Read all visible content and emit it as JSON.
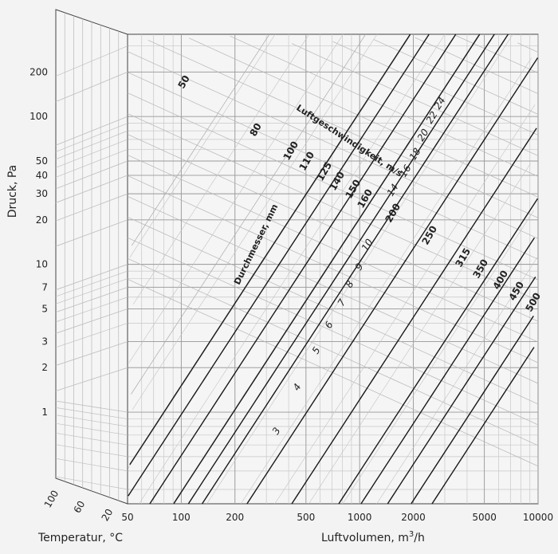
{
  "chart_data": {
    "type": "line",
    "title": "",
    "xlabel_main": "Luftvolumen, m",
    "xlabel_sup": "3",
    "xlabel_end": "/h",
    "ylabel": "Druck, Pa",
    "temperature_label": "Temperatur, °C",
    "x_scale": "log",
    "y_scale": "log",
    "xlim": [
      50,
      10000
    ],
    "ylim": [
      0.24,
      360
    ],
    "x_ticks": [
      "50",
      "100",
      "200",
      "500",
      "1000",
      "2000",
      "5000",
      "10000"
    ],
    "x_tick_values": [
      50,
      100,
      200,
      500,
      1000,
      2000,
      5000,
      10000
    ],
    "y_ticks": [
      "200",
      "100",
      "50",
      "40",
      "30",
      "20",
      "10",
      "7",
      "5",
      "3",
      "2",
      "1"
    ],
    "y_tick_values": [
      200,
      100,
      50,
      40,
      30,
      20,
      10,
      7,
      5,
      3,
      2,
      1
    ],
    "temperature_ticks": [
      "100",
      "60",
      "20"
    ],
    "temperature_tick_values": [
      100,
      60,
      20
    ],
    "diameter_title": "Durchmesser, mm",
    "velocity_title": "Luftgeschwindigkeit, m/s",
    "diameters_mm": [
      {
        "label": "50",
        "q_at_1pa": 13
      },
      {
        "label": "80",
        "q_at_1pa": 45
      },
      {
        "label": "100",
        "q_at_1pa": 80
      },
      {
        "label": "110",
        "q_at_1pa": 102
      },
      {
        "label": "125",
        "q_at_1pa": 144
      },
      {
        "label": "140",
        "q_at_1pa": 196
      },
      {
        "label": "150",
        "q_at_1pa": 237
      },
      {
        "label": "160",
        "q_at_1pa": 283
      },
      {
        "label": "200",
        "q_at_1pa": 505
      },
      {
        "label": "250",
        "q_at_1pa": 900
      },
      {
        "label": "315",
        "q_at_1pa": 1650
      },
      {
        "label": "350",
        "q_at_1pa": 2200
      },
      {
        "label": "400",
        "q_at_1pa": 3100
      },
      {
        "label": "450",
        "q_at_1pa": 4200
      },
      {
        "label": "500",
        "q_at_1pa": 5500
      }
    ],
    "velocities_ms": [
      "3",
      "4",
      "5",
      "6",
      "7",
      "8",
      "9",
      "10",
      "14",
      "16",
      "18",
      "20",
      "22",
      "24"
    ]
  }
}
